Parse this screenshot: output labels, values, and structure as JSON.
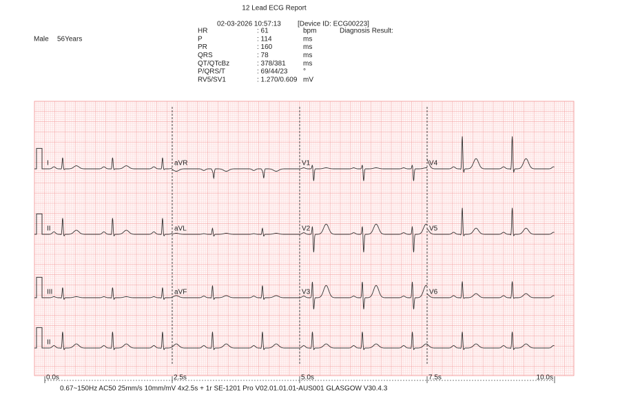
{
  "header": {
    "title": "12 Lead ECG Report",
    "datetime": "02-03-2026 10:57:13",
    "device": "[Device ID:  ECG00223]",
    "diagnosis_label": "Diagnosis Result:"
  },
  "patient": {
    "sex": "Male",
    "age": "56Years"
  },
  "measurements": [
    {
      "label": "HR",
      "value": ": 61",
      "unit": "bpm"
    },
    {
      "label": "P",
      "value": ": 114",
      "unit": "ms"
    },
    {
      "label": "PR",
      "value": ": 160",
      "unit": "ms"
    },
    {
      "label": "QRS",
      "value": ": 78",
      "unit": "ms"
    },
    {
      "label": "QT/QTcBz",
      "value": ": 378/381",
      "unit": "ms"
    },
    {
      "label": "P/QRS/T",
      "value": ": 69/44/23",
      "unit": "°"
    },
    {
      "label": "RV5/SV1",
      "value": ": 1.270/0.609",
      "unit": "mV"
    }
  ],
  "leads": [
    "I",
    "aVR",
    "V1",
    "V4",
    "II",
    "aVL",
    "V2",
    "V5",
    "III",
    "aVF",
    "V3",
    "V6",
    "II"
  ],
  "time_labels": [
    "0.0s",
    "2.5s",
    "5.0s",
    "7.5s",
    "10.0s"
  ],
  "footer": "0.67~150Hz  AC50   25mm/s  10mm/mV  4x2.5s + 1r   SE-1201  Pro  V02.01.01.01-AUS001   GLASGOW V30.4.3"
}
